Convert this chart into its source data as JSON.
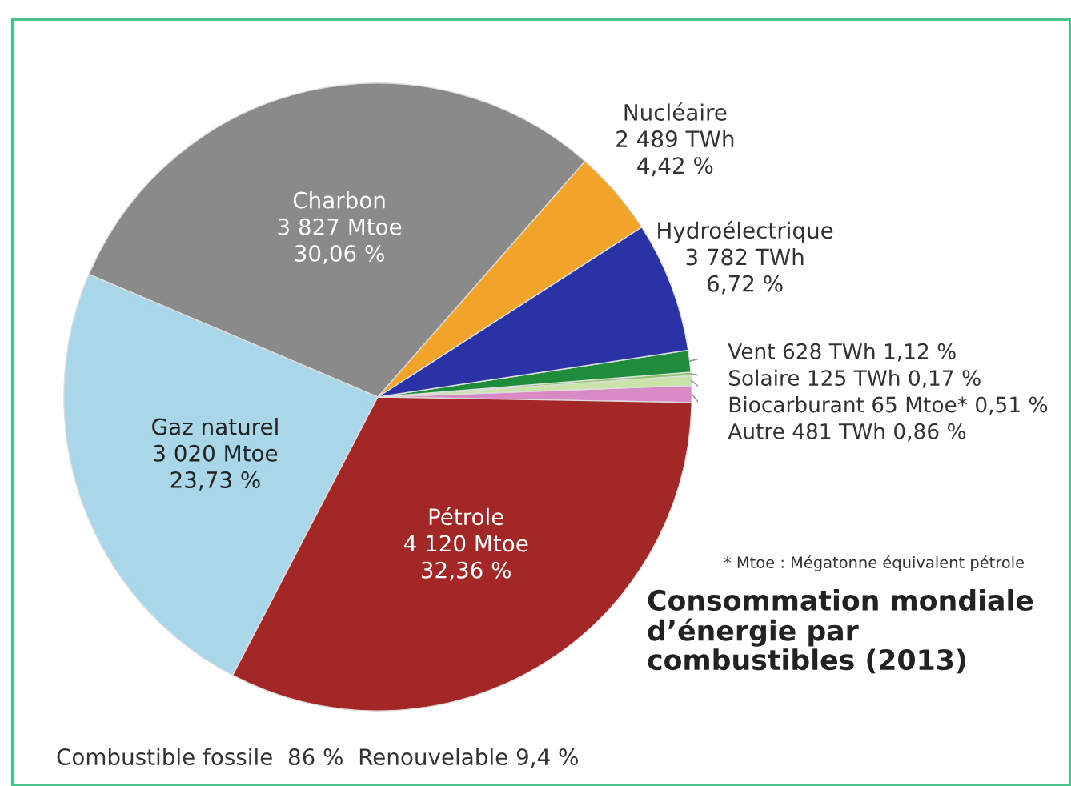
{
  "chart_data": {
    "type": "pie",
    "title": "Consommation mondiale d’énergie par combustibles (2013)",
    "categories": [
      "Autre",
      "Biocarburant",
      "Solaire",
      "Vent",
      "Hydroélectrique",
      "Nucléaire",
      "Charbon",
      "Gaz naturel",
      "Pétrole"
    ],
    "values": [
      0.86,
      0.51,
      0.17,
      1.12,
      6.72,
      4.42,
      30.06,
      23.73,
      32.36
    ],
    "value_labels": [
      "481 TWh 0,86 %",
      "65 Mtoe* 0,51 %",
      "125 TWh 0,17 %",
      "628 TWh 1,12 %",
      "3 782 TWh\n6,72 %",
      "2 489 TWh\n4,42 %",
      "3 827 Mtoe\n30,06 %",
      "3 020 Mtoe\n23,73 %",
      "4 120 Mtoe\n32,36 %"
    ],
    "colors": [
      "#d88ac4",
      "#c9e3a8",
      "#8cc76a",
      "#1e8c3a",
      "#2a33a6",
      "#f2a42a",
      "#8a8a8a",
      "#a9d6e8",
      "#a32727"
    ],
    "annotations": [
      "* Mtoe : Mégatonne équivalent pétrole",
      "Combustible fossile  86 %  Renouvelable 9,4 %"
    ],
    "legend": false
  }
}
